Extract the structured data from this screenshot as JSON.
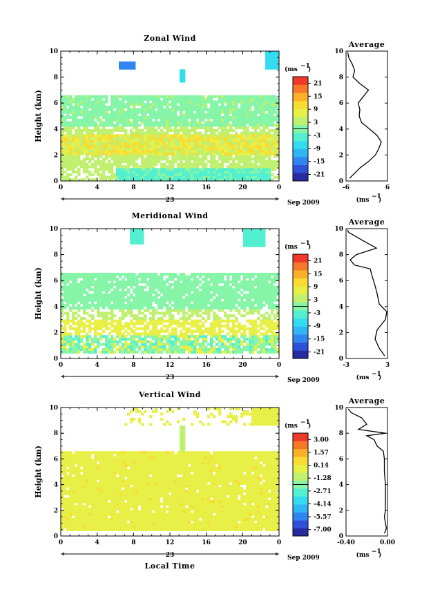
{
  "colors": {
    "scale": [
      "#2a2aa0",
      "#2f50d8",
      "#2f86f0",
      "#2fb6f3",
      "#33dcf0",
      "#52f0d0",
      "#86f5a8",
      "#c0f070",
      "#e8f048",
      "#f8dc32",
      "#fbb02a",
      "#f8782a",
      "#ee3a2a"
    ]
  },
  "panels": [
    {
      "title": "Zonal Wind",
      "ylabel": "Height (km)",
      "y_ticks": [
        "0",
        "2",
        "4",
        "6",
        "8",
        "10"
      ],
      "x_ticks": [
        "0",
        "4",
        "8",
        "12",
        "16",
        "20",
        "0"
      ],
      "day_label": "23",
      "month_label": "Sep 2009",
      "unit_label": "(ms",
      "colorbar_ticks": [
        "21",
        "15",
        "9",
        "3",
        "-3",
        "-9",
        "-15",
        "-21"
      ],
      "avg_title": "Average",
      "avg_x_ticks": [
        "-6",
        "6"
      ],
      "avg_y_ticks": [
        "0",
        "2",
        "4",
        "6",
        "8",
        "10"
      ],
      "avg_unit": "(ms",
      "chart_data": {
        "type": "heatmap",
        "x_range": [
          0,
          24
        ],
        "ylim": [
          0,
          10
        ],
        "colorbar_range": [
          -24,
          24
        ],
        "average_profile": {
          "xlim": [
            -6,
            6
          ],
          "height": [
            0.2,
            1,
            1.5,
            2,
            2.5,
            3,
            3.5,
            4,
            4.5,
            5,
            5.5,
            6,
            6.5,
            7,
            7.5,
            8,
            8.5,
            9,
            9.5,
            9.9
          ],
          "value": [
            -5,
            -2,
            0.5,
            2.5,
            3.5,
            4.2,
            3,
            0.8,
            -1.5,
            -2.2,
            -2,
            -2.5,
            -1,
            0.5,
            -2,
            -4,
            -3.5,
            -4.2,
            -5.2,
            -5.5
          ]
        }
      }
    },
    {
      "title": "Meridional Wind",
      "ylabel": "Height (km)",
      "y_ticks": [
        "0",
        "2",
        "4",
        "6",
        "8",
        "10"
      ],
      "x_ticks": [
        "0",
        "4",
        "8",
        "12",
        "16",
        "20",
        "0"
      ],
      "day_label": "23",
      "month_label": "Sep 2009",
      "unit_label": "(ms",
      "colorbar_ticks": [
        "21",
        "15",
        "9",
        "3",
        "-3",
        "-9",
        "-15",
        "-21"
      ],
      "avg_title": "Average",
      "avg_x_ticks": [
        "-3",
        "3"
      ],
      "avg_y_ticks": [
        "0",
        "2",
        "4",
        "6",
        "8",
        "10"
      ],
      "avg_unit": "(ms",
      "chart_data": {
        "type": "heatmap",
        "x_range": [
          0,
          24
        ],
        "ylim": [
          0,
          10
        ],
        "colorbar_range": [
          -24,
          24
        ],
        "average_profile": {
          "xlim": [
            -3,
            3
          ],
          "height": [
            0.2,
            0.8,
            1.5,
            2.2,
            3,
            3.6,
            4.2,
            5,
            5.6,
            6.3,
            6.9,
            7.2,
            7.6,
            8,
            8.5,
            9,
            9.4,
            9.7,
            9.9
          ],
          "value": [
            2.6,
            1.8,
            1.2,
            1.5,
            2.7,
            2.9,
            1.8,
            1.5,
            1.2,
            0.8,
            0.5,
            -1.8,
            -2.4,
            -1.5,
            1.4,
            -0.3,
            -1.6,
            -2.6,
            -2.8
          ]
        }
      }
    },
    {
      "title": "Vertical Wind",
      "ylabel": "Height (km)",
      "y_ticks": [
        "0",
        "2",
        "4",
        "6",
        "8",
        "10"
      ],
      "x_ticks": [
        "0",
        "4",
        "8",
        "12",
        "16",
        "20",
        "0"
      ],
      "day_label": "23",
      "month_label": "Sep 2009",
      "unit_label": "(ms",
      "colorbar_ticks": [
        "3.00",
        "1.57",
        "0.14",
        "-1.28",
        "-2.71",
        "-4.14",
        "-5.57",
        "-7.00"
      ],
      "avg_title": "Average",
      "avg_x_ticks": [
        "-0.40",
        "0.00"
      ],
      "avg_y_ticks": [
        "0",
        "2",
        "4",
        "6",
        "8",
        "10"
      ],
      "avg_unit": "(ms",
      "xlabel": "Local Time",
      "chart_data": {
        "type": "heatmap",
        "x_range": [
          0,
          24
        ],
        "ylim": [
          0,
          10
        ],
        "colorbar_range": [
          -8.4,
          4.4
        ],
        "average_profile": {
          "xlim": [
            -0.4,
            0
          ],
          "height": [
            0.2,
            0.6,
            1,
            1.5,
            2,
            3,
            4,
            5,
            6,
            6.6,
            7,
            7.5,
            7.8,
            8,
            8.3,
            8.7,
            9.2,
            9.6,
            9.9
          ],
          "value": [
            -0.03,
            -0.01,
            -0.02,
            -0.03,
            -0.02,
            -0.02,
            -0.02,
            -0.03,
            -0.03,
            -0.04,
            -0.1,
            -0.13,
            -0.2,
            -0.02,
            -0.28,
            -0.2,
            -0.25,
            -0.35,
            -0.38
          ]
        }
      }
    }
  ]
}
